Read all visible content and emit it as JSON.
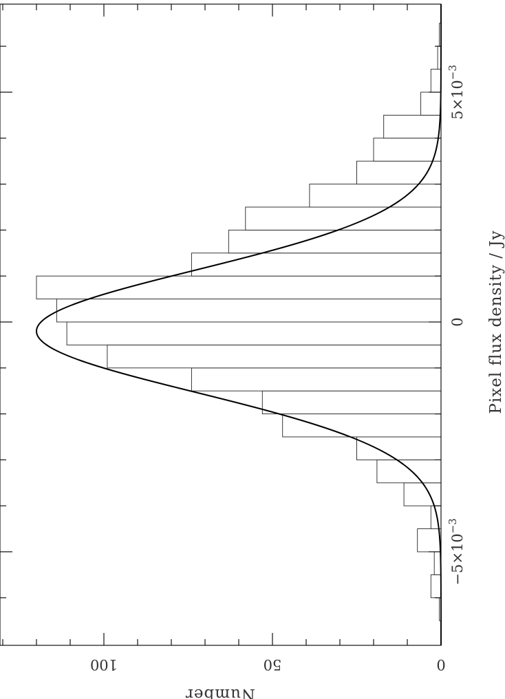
{
  "chart_data": {
    "type": "bar",
    "orientation": "rotated 90° (histogram with fitted Gaussian)",
    "xlabel": "Pixel flux density / Jy",
    "ylabel": "Number",
    "x_tick_labels": [
      {
        "value": -0.005,
        "text": "−5×10",
        "sup": "−3"
      },
      {
        "value": 0,
        "text": "0",
        "sup": ""
      },
      {
        "value": 0.005,
        "text": "5×10",
        "sup": "−3"
      }
    ],
    "y_tick_labels": [
      {
        "value": 0,
        "text": "0"
      },
      {
        "value": 50,
        "text": "50"
      },
      {
        "value": 100,
        "text": "100"
      }
    ],
    "xlim": [
      -0.00625,
      0.0065
    ],
    "ylim": [
      0,
      131
    ],
    "bin_width": 0.0005,
    "bins": [
      {
        "x0": -0.0065,
        "count": 0.5
      },
      {
        "x0": -0.006,
        "count": 3
      },
      {
        "x0": -0.0055,
        "count": 2
      },
      {
        "x0": -0.005,
        "count": 7
      },
      {
        "x0": -0.0045,
        "count": 3
      },
      {
        "x0": -0.004,
        "count": 11
      },
      {
        "x0": -0.0035,
        "count": 19
      },
      {
        "x0": -0.003,
        "count": 25
      },
      {
        "x0": -0.0025,
        "count": 47
      },
      {
        "x0": -0.002,
        "count": 53
      },
      {
        "x0": -0.0015,
        "count": 74
      },
      {
        "x0": -0.001,
        "count": 99
      },
      {
        "x0": -0.0005,
        "count": 111
      },
      {
        "x0": 0.0,
        "count": 114
      },
      {
        "x0": 0.0005,
        "count": 120
      },
      {
        "x0": 0.001,
        "count": 74
      },
      {
        "x0": 0.0015,
        "count": 63
      },
      {
        "x0": 0.002,
        "count": 58
      },
      {
        "x0": 0.0025,
        "count": 39
      },
      {
        "x0": 0.003,
        "count": 25
      },
      {
        "x0": 0.0035,
        "count": 20
      },
      {
        "x0": 0.004,
        "count": 17
      },
      {
        "x0": 0.0045,
        "count": 6
      },
      {
        "x0": 0.005,
        "count": 3
      },
      {
        "x0": 0.0055,
        "count": 1
      },
      {
        "x0": 0.006,
        "count": 0.5
      }
    ],
    "fit": {
      "type": "gaussian",
      "amplitude": 120,
      "mean": -0.0002,
      "sigma": 0.00133
    }
  }
}
